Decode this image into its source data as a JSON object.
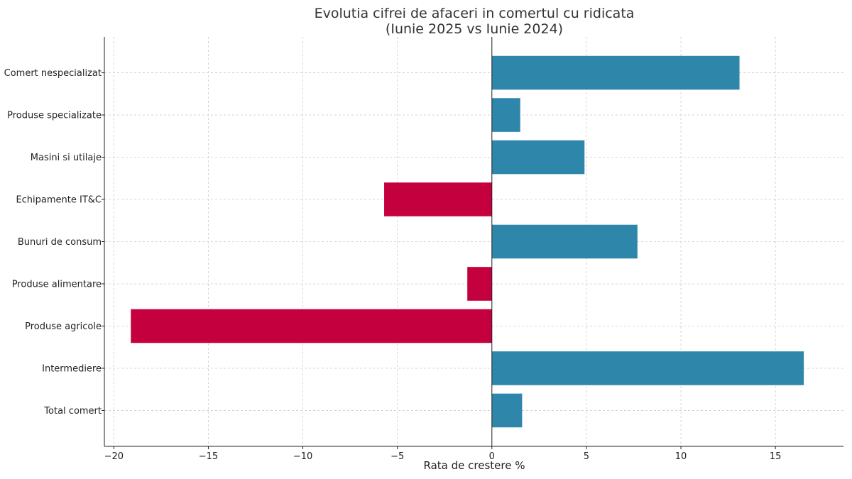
{
  "chart_data": {
    "type": "bar",
    "orientation": "horizontal",
    "title": "Evolutia cifrei de afaceri in comertul cu ridicata",
    "subtitle": "(Iunie 2025 vs Iunie 2024)",
    "xlabel": "Rata de crestere %",
    "ylabel": "",
    "categories": [
      "Total comert",
      "Intermediere",
      "Produse agricole",
      "Produse alimentare",
      "Bunuri de consum",
      "Echipamente IT&C",
      "Masini si utilaje",
      "Produse specializate",
      "Comert nespecializat"
    ],
    "values": [
      1.6,
      16.5,
      -19.1,
      -1.3,
      7.7,
      -5.7,
      4.9,
      1.5,
      13.1
    ],
    "xlim": [
      -20.5,
      18.6
    ],
    "xticks": [
      -20,
      -15,
      -10,
      -5,
      0,
      5,
      10,
      15
    ],
    "xtick_labels": [
      "−20",
      "−15",
      "−10",
      "−5",
      "0",
      "5",
      "10",
      "15"
    ],
    "grid": true,
    "colors": {
      "positive": "#2e86ab",
      "negative": "#c5003e"
    }
  }
}
